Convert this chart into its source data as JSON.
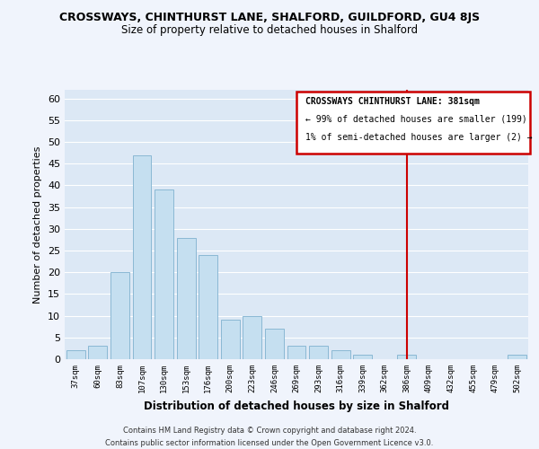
{
  "title": "CROSSWAYS, CHINTHURST LANE, SHALFORD, GUILDFORD, GU4 8JS",
  "subtitle": "Size of property relative to detached houses in Shalford",
  "xlabel": "Distribution of detached houses by size in Shalford",
  "ylabel": "Number of detached properties",
  "bar_labels": [
    "37sqm",
    "60sqm",
    "83sqm",
    "107sqm",
    "130sqm",
    "153sqm",
    "176sqm",
    "200sqm",
    "223sqm",
    "246sqm",
    "269sqm",
    "293sqm",
    "316sqm",
    "339sqm",
    "362sqm",
    "386sqm",
    "409sqm",
    "432sqm",
    "455sqm",
    "479sqm",
    "502sqm"
  ],
  "bar_values": [
    2,
    3,
    20,
    47,
    39,
    28,
    24,
    9,
    10,
    7,
    3,
    3,
    2,
    1,
    0,
    1,
    0,
    0,
    0,
    0,
    1
  ],
  "bar_color": "#c5dff0",
  "bar_edge_color": "#8ab8d4",
  "ylim": [
    0,
    62
  ],
  "yticks": [
    0,
    5,
    10,
    15,
    20,
    25,
    30,
    35,
    40,
    45,
    50,
    55,
    60
  ],
  "vline_x": 15,
  "vline_color": "#cc0000",
  "annotation_title": "CROSSWAYS CHINTHURST LANE: 381sqm",
  "annotation_line1": "← 99% of detached houses are smaller (199)",
  "annotation_line2": "1% of semi-detached houses are larger (2) →",
  "footer_line1": "Contains HM Land Registry data © Crown copyright and database right 2024.",
  "footer_line2": "Contains public sector information licensed under the Open Government Licence v3.0.",
  "background_color": "#f0f4fc",
  "plot_bg_color": "#dce8f5",
  "grid_color": "#ffffff"
}
